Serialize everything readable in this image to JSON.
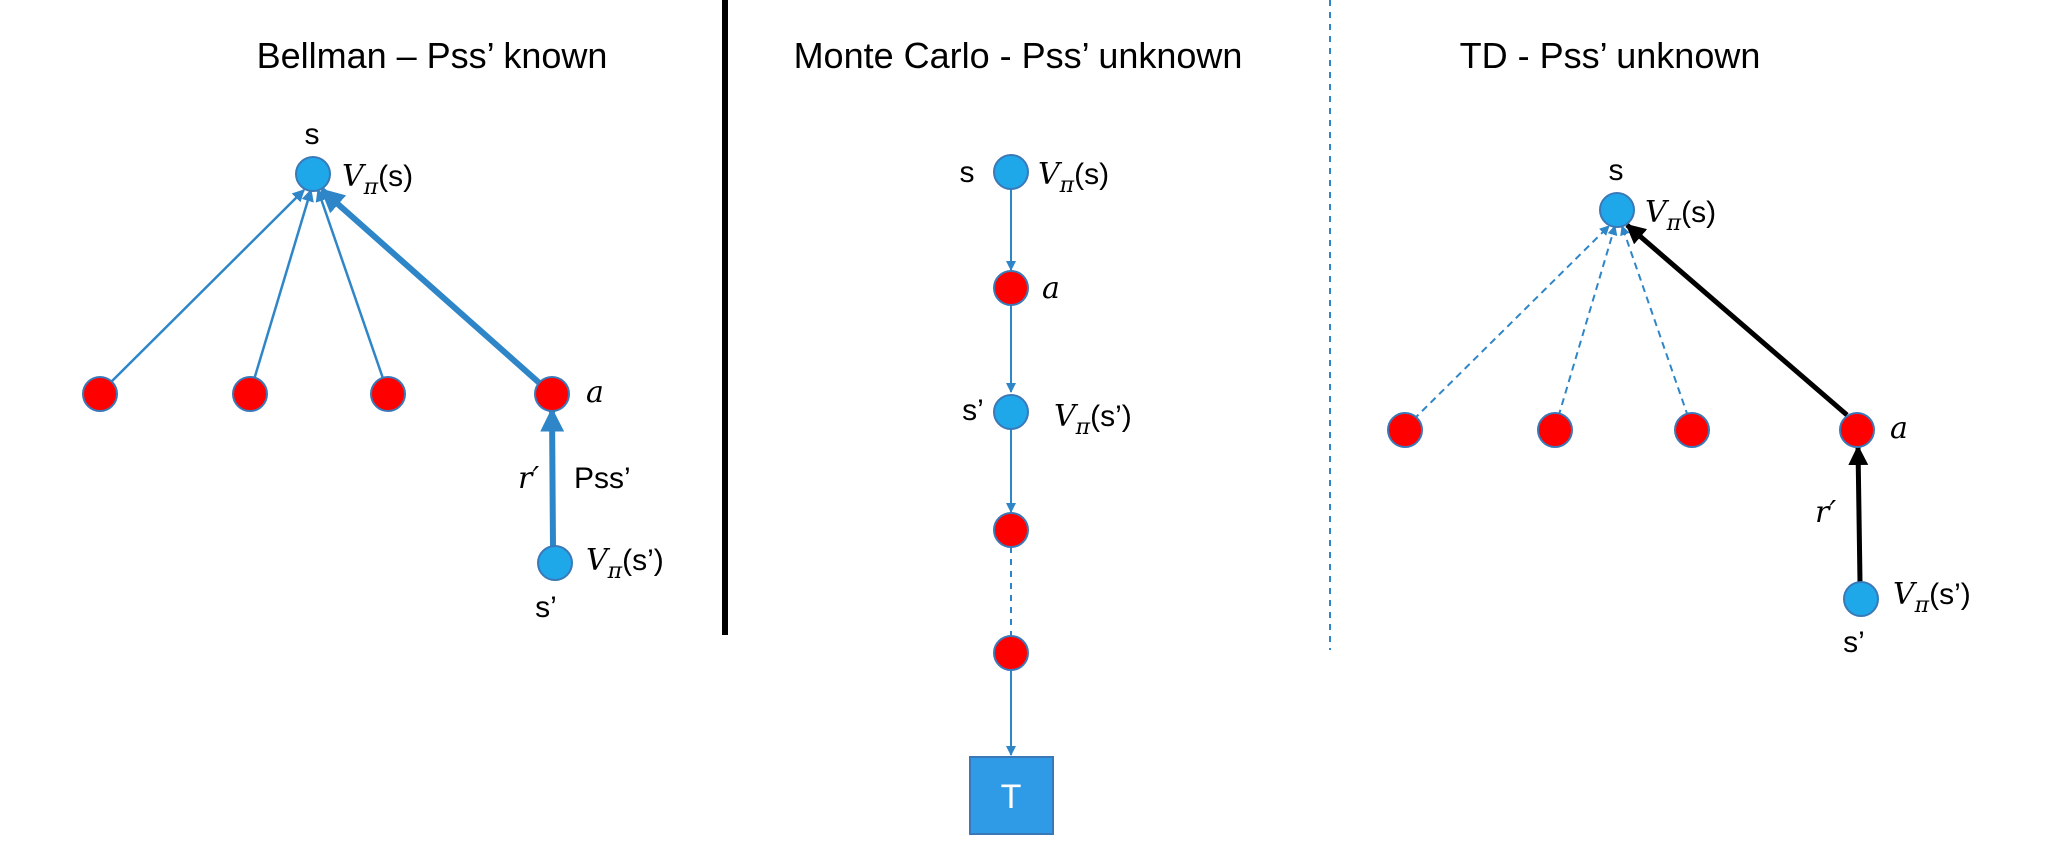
{
  "colors": {
    "state_node": "#1ea8ea",
    "action_node": "#ff0000",
    "node_outline": "#3a78b8",
    "blue_edge": "#2e86c8",
    "black_edge": "#000000",
    "terminal": "#2f9ae6"
  },
  "panels": {
    "bellman": {
      "title": "Bellman – Pss’ known",
      "s_label": "s",
      "v_s": {
        "main": "V",
        "sub": "π",
        "arg": "(s)"
      },
      "a_label": "a",
      "r_label": "r′",
      "pss_label": "Pss’",
      "sp_label": "s’",
      "v_sp": {
        "main": "V",
        "sub": "π",
        "arg": "(s’)"
      }
    },
    "monte_carlo": {
      "title": "Monte Carlo - Pss’ unknown",
      "s_label": "s",
      "v_s": {
        "main": "V",
        "sub": "π",
        "arg": "(s)"
      },
      "a_label": "a",
      "sp_label": "s’",
      "v_sp": {
        "main": "V",
        "sub": "π",
        "arg": "(s’)"
      },
      "terminal_label": "T"
    },
    "td": {
      "title": "TD - Pss’ unknown",
      "s_label": "s",
      "v_s": {
        "main": "V",
        "sub": "π",
        "arg": "(s)"
      },
      "a_label": "a",
      "r_label": "r′",
      "sp_label": "s’",
      "v_sp": {
        "main": "V",
        "sub": "π",
        "arg": "(s’)"
      }
    }
  }
}
